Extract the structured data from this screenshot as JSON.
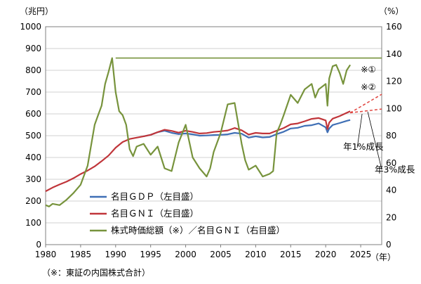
{
  "chart_data": {
    "type": "line",
    "left_axis": {
      "unit_label": "（兆円）",
      "ylim": [
        0,
        1000
      ],
      "ticks": [
        "0",
        "100",
        "200",
        "300",
        "400",
        "500",
        "600",
        "700",
        "800",
        "900",
        "1000"
      ]
    },
    "right_axis": {
      "unit_label": "（%）",
      "ylim": [
        0,
        160
      ],
      "ticks": [
        "0",
        "20",
        "40",
        "60",
        "80",
        "100",
        "120",
        "140",
        "160"
      ]
    },
    "x_axis": {
      "unit_label": "（年）",
      "xlim": [
        1980,
        2028
      ],
      "ticks": [
        "1980",
        "1985",
        "1990",
        "1995",
        "2000",
        "2005",
        "2010",
        "2015",
        "2020",
        "2025"
      ]
    },
    "grid": "horizontal",
    "legend_position": "bottom-left",
    "series": [
      {
        "name": "名目ＧＤＰ（左目盛）",
        "axis": "left",
        "color": "#3f6fb5",
        "points": [
          [
            1994.0,
            497
          ],
          [
            1995.0,
            504
          ],
          [
            1996.0,
            516
          ],
          [
            1997.0,
            523
          ],
          [
            1998.0,
            513
          ],
          [
            1999.0,
            507
          ],
          [
            2000.0,
            510
          ],
          [
            2001.0,
            506
          ],
          [
            2002.0,
            500
          ],
          [
            2003.0,
            501
          ],
          [
            2004.0,
            503
          ],
          [
            2005.0,
            504
          ],
          [
            2006.0,
            506
          ],
          [
            2007.0,
            513
          ],
          [
            2008.0,
            509
          ],
          [
            2009.0,
            491
          ],
          [
            2010.0,
            497
          ],
          [
            2011.0,
            492
          ],
          [
            2012.0,
            494
          ],
          [
            2013.0,
            507
          ],
          [
            2014.0,
            518
          ],
          [
            2015.0,
            533
          ],
          [
            2016.0,
            536
          ],
          [
            2017.0,
            545
          ],
          [
            2018.0,
            548
          ],
          [
            2019.0,
            556
          ],
          [
            2020.0,
            538
          ],
          [
            2020.25,
            515
          ],
          [
            2020.5,
            533
          ],
          [
            2021.0,
            549
          ],
          [
            2022.0,
            558
          ],
          [
            2023.0,
            568
          ],
          [
            2023.5,
            572
          ]
        ]
      },
      {
        "name": "名目ＧＮＩ（左目盛）",
        "axis": "left",
        "color": "#c0353a",
        "points": [
          [
            1980.0,
            245
          ],
          [
            1981.0,
            262
          ],
          [
            1982.0,
            276
          ],
          [
            1983.0,
            289
          ],
          [
            1984.0,
            305
          ],
          [
            1985.0,
            324
          ],
          [
            1986.0,
            340
          ],
          [
            1987.0,
            359
          ],
          [
            1988.0,
            383
          ],
          [
            1989.0,
            409
          ],
          [
            1990.0,
            445
          ],
          [
            1991.0,
            471
          ],
          [
            1992.0,
            485
          ],
          [
            1993.0,
            491
          ],
          [
            1994.0,
            497
          ],
          [
            1995.0,
            504
          ],
          [
            1996.0,
            516
          ],
          [
            1997.0,
            527
          ],
          [
            1998.0,
            522
          ],
          [
            1999.0,
            514
          ],
          [
            2000.0,
            523
          ],
          [
            2001.0,
            517
          ],
          [
            2002.0,
            510
          ],
          [
            2003.0,
            512
          ],
          [
            2004.0,
            517
          ],
          [
            2005.0,
            520
          ],
          [
            2006.0,
            524
          ],
          [
            2007.0,
            535
          ],
          [
            2008.0,
            525
          ],
          [
            2009.0,
            505
          ],
          [
            2010.0,
            513
          ],
          [
            2011.0,
            510
          ],
          [
            2012.0,
            510
          ],
          [
            2013.0,
            523
          ],
          [
            2014.0,
            535
          ],
          [
            2015.0,
            552
          ],
          [
            2016.0,
            556
          ],
          [
            2017.0,
            566
          ],
          [
            2018.0,
            577
          ],
          [
            2019.0,
            581
          ],
          [
            2020.0,
            570
          ],
          [
            2020.25,
            530
          ],
          [
            2020.5,
            560
          ],
          [
            2021.0,
            578
          ],
          [
            2022.0,
            590
          ],
          [
            2023.0,
            605
          ],
          [
            2023.5,
            612
          ]
        ]
      },
      {
        "name": "株式時価総額（※）／名目ＧＮＩ（右目盛）",
        "axis": "right",
        "color": "#77933c",
        "points": [
          [
            1980.0,
            29
          ],
          [
            1980.5,
            28
          ],
          [
            1981.0,
            30
          ],
          [
            1982.0,
            29
          ],
          [
            1983.0,
            33
          ],
          [
            1984.0,
            38
          ],
          [
            1985.0,
            44
          ],
          [
            1986.0,
            58
          ],
          [
            1987.0,
            88
          ],
          [
            1987.5,
            95
          ],
          [
            1988.0,
            102
          ],
          [
            1988.5,
            118
          ],
          [
            1989.0,
            127
          ],
          [
            1989.5,
            137
          ],
          [
            1990.0,
            112
          ],
          [
            1990.5,
            98
          ],
          [
            1991.0,
            95
          ],
          [
            1991.5,
            88
          ],
          [
            1992.0,
            70
          ],
          [
            1992.5,
            65
          ],
          [
            1993.0,
            72
          ],
          [
            1994.0,
            74
          ],
          [
            1995.0,
            66
          ],
          [
            1996.0,
            72
          ],
          [
            1997.0,
            56
          ],
          [
            1998.0,
            54
          ],
          [
            1999.0,
            75
          ],
          [
            2000.0,
            88
          ],
          [
            2000.5,
            76
          ],
          [
            2001.0,
            64
          ],
          [
            2002.0,
            56
          ],
          [
            2003.0,
            50
          ],
          [
            2003.5,
            56
          ],
          [
            2004.0,
            68
          ],
          [
            2005.0,
            82
          ],
          [
            2006.0,
            103
          ],
          [
            2007.0,
            104
          ],
          [
            2008.0,
            74
          ],
          [
            2008.5,
            62
          ],
          [
            2009.0,
            55
          ],
          [
            2010.0,
            58
          ],
          [
            2011.0,
            50
          ],
          [
            2012.0,
            52
          ],
          [
            2012.5,
            54
          ],
          [
            2013.0,
            82
          ],
          [
            2013.5,
            88
          ],
          [
            2014.0,
            95
          ],
          [
            2015.0,
            110
          ],
          [
            2016.0,
            104
          ],
          [
            2017.0,
            114
          ],
          [
            2018.0,
            118
          ],
          [
            2018.5,
            108
          ],
          [
            2019.0,
            114
          ],
          [
            2020.0,
            118
          ],
          [
            2020.25,
            102
          ],
          [
            2020.5,
            122
          ],
          [
            2021.0,
            131
          ],
          [
            2021.5,
            132
          ],
          [
            2022.0,
            126
          ],
          [
            2022.5,
            118
          ],
          [
            2023.0,
            128
          ],
          [
            2023.5,
            132
          ]
        ]
      }
    ],
    "reference_line": {
      "axis": "right",
      "value": 137,
      "from": 1990,
      "to": 2028,
      "color": "#77933c"
    },
    "projections": [
      {
        "label": "年1%成長",
        "axis": "left",
        "color": "#e0443e",
        "style": "dashed",
        "from": [
          2023.5,
          605
        ],
        "to": [
          2028,
          622
        ]
      },
      {
        "label": "年3%成長",
        "axis": "left",
        "color": "#e0443e",
        "style": "dashed",
        "from": [
          2023.5,
          605
        ],
        "to": [
          2028,
          690
        ]
      }
    ],
    "annotations": [
      {
        "text": "※①",
        "x": 2025.0,
        "y": 790,
        "axis": "left"
      },
      {
        "text": "※②",
        "x": 2025.0,
        "y": 710,
        "axis": "left"
      },
      {
        "text": "年1%成長",
        "x": 2022.5,
        "y": 435,
        "axis": "left"
      },
      {
        "text": "年3%成長",
        "x": 2027.0,
        "y": 330,
        "axis": "left"
      }
    ],
    "footnote": "（※：東証の内国株式合計）"
  }
}
